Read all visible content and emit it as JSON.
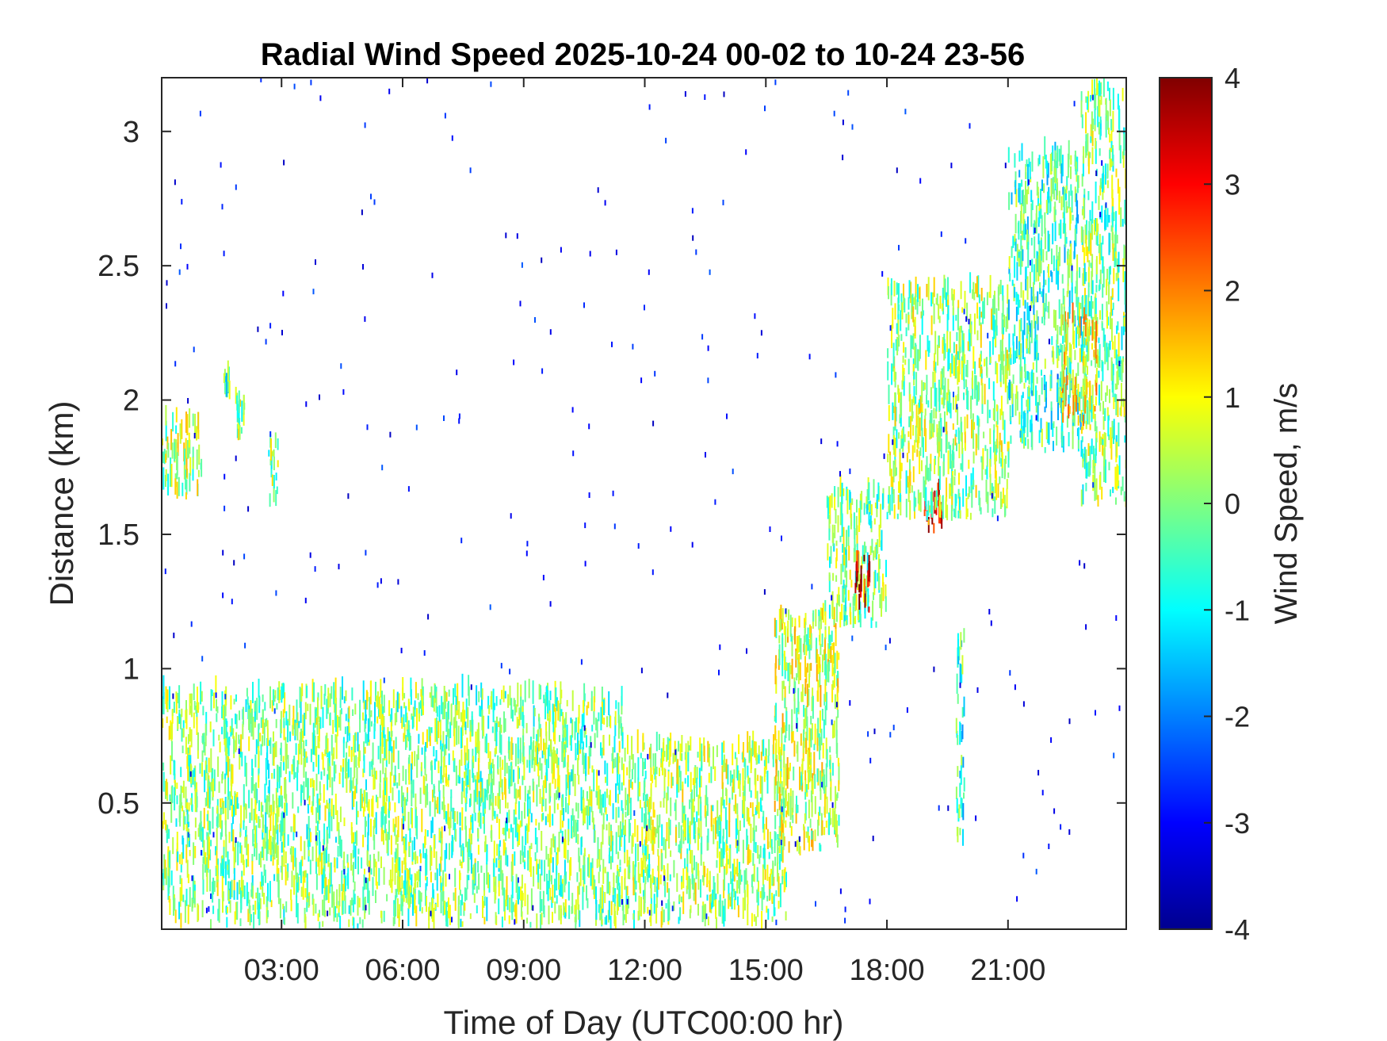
{
  "chart_data": {
    "type": "heatmap",
    "title": "Radial Wind Speed 2025-10-24 00-02 to 10-24 23-56",
    "xlabel": "Time of Day (UTC00:00 hr)",
    "ylabel": "Distance (km)",
    "xlim_hours": [
      0.03,
      23.93
    ],
    "ylim_km": [
      0.03,
      3.2
    ],
    "x_ticks": [
      {
        "value": 3,
        "label": "03:00"
      },
      {
        "value": 6,
        "label": "06:00"
      },
      {
        "value": 9,
        "label": "09:00"
      },
      {
        "value": 12,
        "label": "12:00"
      },
      {
        "value": 15,
        "label": "15:00"
      },
      {
        "value": 18,
        "label": "18:00"
      },
      {
        "value": 21,
        "label": "21:00"
      }
    ],
    "y_ticks": [
      {
        "value": 0.5,
        "label": "0.5"
      },
      {
        "value": 1,
        "label": "1"
      },
      {
        "value": 1.5,
        "label": "1.5"
      },
      {
        "value": 2,
        "label": "2"
      },
      {
        "value": 2.5,
        "label": "2.5"
      },
      {
        "value": 3,
        "label": "3"
      }
    ],
    "colorbar": {
      "label": "Wind Speed, m/s",
      "colormap": "jet",
      "range": [
        -4,
        4
      ],
      "ticks": [
        {
          "value": 4,
          "label": "4"
        },
        {
          "value": 3,
          "label": "3"
        },
        {
          "value": 2,
          "label": "2"
        },
        {
          "value": 1,
          "label": "1"
        },
        {
          "value": 0,
          "label": "0"
        },
        {
          "value": -1,
          "label": "-1"
        },
        {
          "value": -2,
          "label": "-2"
        },
        {
          "value": -3,
          "label": "-3"
        },
        {
          "value": -4,
          "label": "-4"
        }
      ]
    },
    "grid": false,
    "regions": [
      {
        "name": "early-layer",
        "t0": 0.03,
        "t1": 1.0,
        "d0": 1.62,
        "d1": 1.92,
        "v": 0.3
      },
      {
        "name": "plume-a",
        "t0": 1.55,
        "t1": 1.7,
        "d0": 2.0,
        "d1": 2.08,
        "v": -0.3
      },
      {
        "name": "plume-b",
        "t0": 1.85,
        "t1": 2.1,
        "d0": 1.85,
        "d1": 2.0,
        "v": 0.2
      },
      {
        "name": "plume-c",
        "t0": 2.65,
        "t1": 2.9,
        "d0": 1.6,
        "d1": 1.85,
        "v": 0.1
      },
      {
        "name": "night-surface",
        "t0": 0.03,
        "t1": 11.5,
        "d0": 0.03,
        "d1": 0.9,
        "v": 0.0
      },
      {
        "name": "morning-surface",
        "t0": 11.5,
        "t1": 15.5,
        "d0": 0.03,
        "d1": 0.7,
        "v": 0.2
      },
      {
        "name": "bl-growth-1",
        "t0": 15.2,
        "t1": 16.8,
        "d0": 0.3,
        "d1": 1.2,
        "v": 0.5
      },
      {
        "name": "bl-growth-2",
        "t0": 16.5,
        "t1": 18.0,
        "d0": 1.15,
        "d1": 1.65,
        "v": 0.0
      },
      {
        "name": "hot-spot-1",
        "t0": 17.2,
        "t1": 17.6,
        "d0": 1.2,
        "d1": 1.4,
        "v": 3.2
      },
      {
        "name": "plume-d",
        "t0": 18.9,
        "t1": 19.4,
        "d0": 1.5,
        "d1": 1.65,
        "v": 2.8
      },
      {
        "name": "elevated-1",
        "t0": 18.0,
        "t1": 21.0,
        "d0": 1.55,
        "d1": 2.4,
        "v": 0.2
      },
      {
        "name": "column",
        "t0": 19.7,
        "t1": 19.9,
        "d0": 0.3,
        "d1": 1.1,
        "v": -0.6
      },
      {
        "name": "elevated-2",
        "t0": 21.0,
        "t1": 22.8,
        "d0": 1.8,
        "d1": 2.9,
        "v": -0.5
      },
      {
        "name": "late-layer",
        "t0": 22.8,
        "t1": 23.93,
        "d0": 1.6,
        "d1": 3.15,
        "v": 0.0
      },
      {
        "name": "late-warm",
        "t0": 22.3,
        "t1": 23.2,
        "d0": 1.9,
        "d1": 2.3,
        "v": 1.0
      }
    ]
  }
}
